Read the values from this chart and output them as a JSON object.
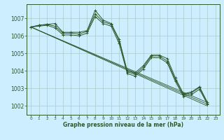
{
  "title": "Graphe pression niveau de la mer (hPa)",
  "background_color": "#cceeff",
  "grid_color": "#aacccc",
  "line_color": "#2d5a2d",
  "xlim": [
    -0.5,
    23.5
  ],
  "ylim": [
    1001.5,
    1007.8
  ],
  "yticks": [
    1002,
    1003,
    1004,
    1005,
    1006,
    1007
  ],
  "xticks": [
    0,
    1,
    2,
    3,
    4,
    5,
    6,
    7,
    8,
    9,
    10,
    11,
    12,
    13,
    14,
    15,
    16,
    17,
    18,
    19,
    20,
    21,
    22,
    23
  ],
  "series1": [
    1006.5,
    1006.6,
    1006.65,
    1006.7,
    1006.2,
    1006.2,
    1006.2,
    1006.3,
    1007.45,
    1006.9,
    1006.7,
    1005.8,
    1004.0,
    1003.9,
    1004.3,
    1004.9,
    1004.9,
    1004.7,
    1003.6,
    1002.7,
    1002.8,
    1003.1,
    1002.2,
    null
  ],
  "series2": [
    1006.5,
    1006.6,
    1006.65,
    1006.55,
    1006.15,
    1006.15,
    1006.1,
    1006.25,
    1007.25,
    1006.8,
    1006.65,
    1005.7,
    1003.95,
    1003.8,
    1004.2,
    1004.85,
    1004.85,
    1004.55,
    1003.5,
    1002.65,
    1002.75,
    1003.05,
    1002.15,
    null
  ],
  "series3": [
    1006.5,
    1006.55,
    1006.6,
    1006.45,
    1006.05,
    1006.05,
    1006.0,
    1006.15,
    1007.1,
    1006.7,
    1006.55,
    1005.55,
    1003.85,
    1003.7,
    1004.1,
    1004.75,
    1004.75,
    1004.45,
    1003.4,
    1002.55,
    1002.65,
    1002.95,
    1002.1,
    null
  ],
  "trend_lines": [
    {
      "x0": 0,
      "y0": 1006.5,
      "x1": 22,
      "y1": 1002.2
    },
    {
      "x0": 0,
      "y0": 1006.5,
      "x1": 22,
      "y1": 1002.1
    },
    {
      "x0": 0,
      "y0": 1006.5,
      "x1": 22,
      "y1": 1002.0
    }
  ]
}
